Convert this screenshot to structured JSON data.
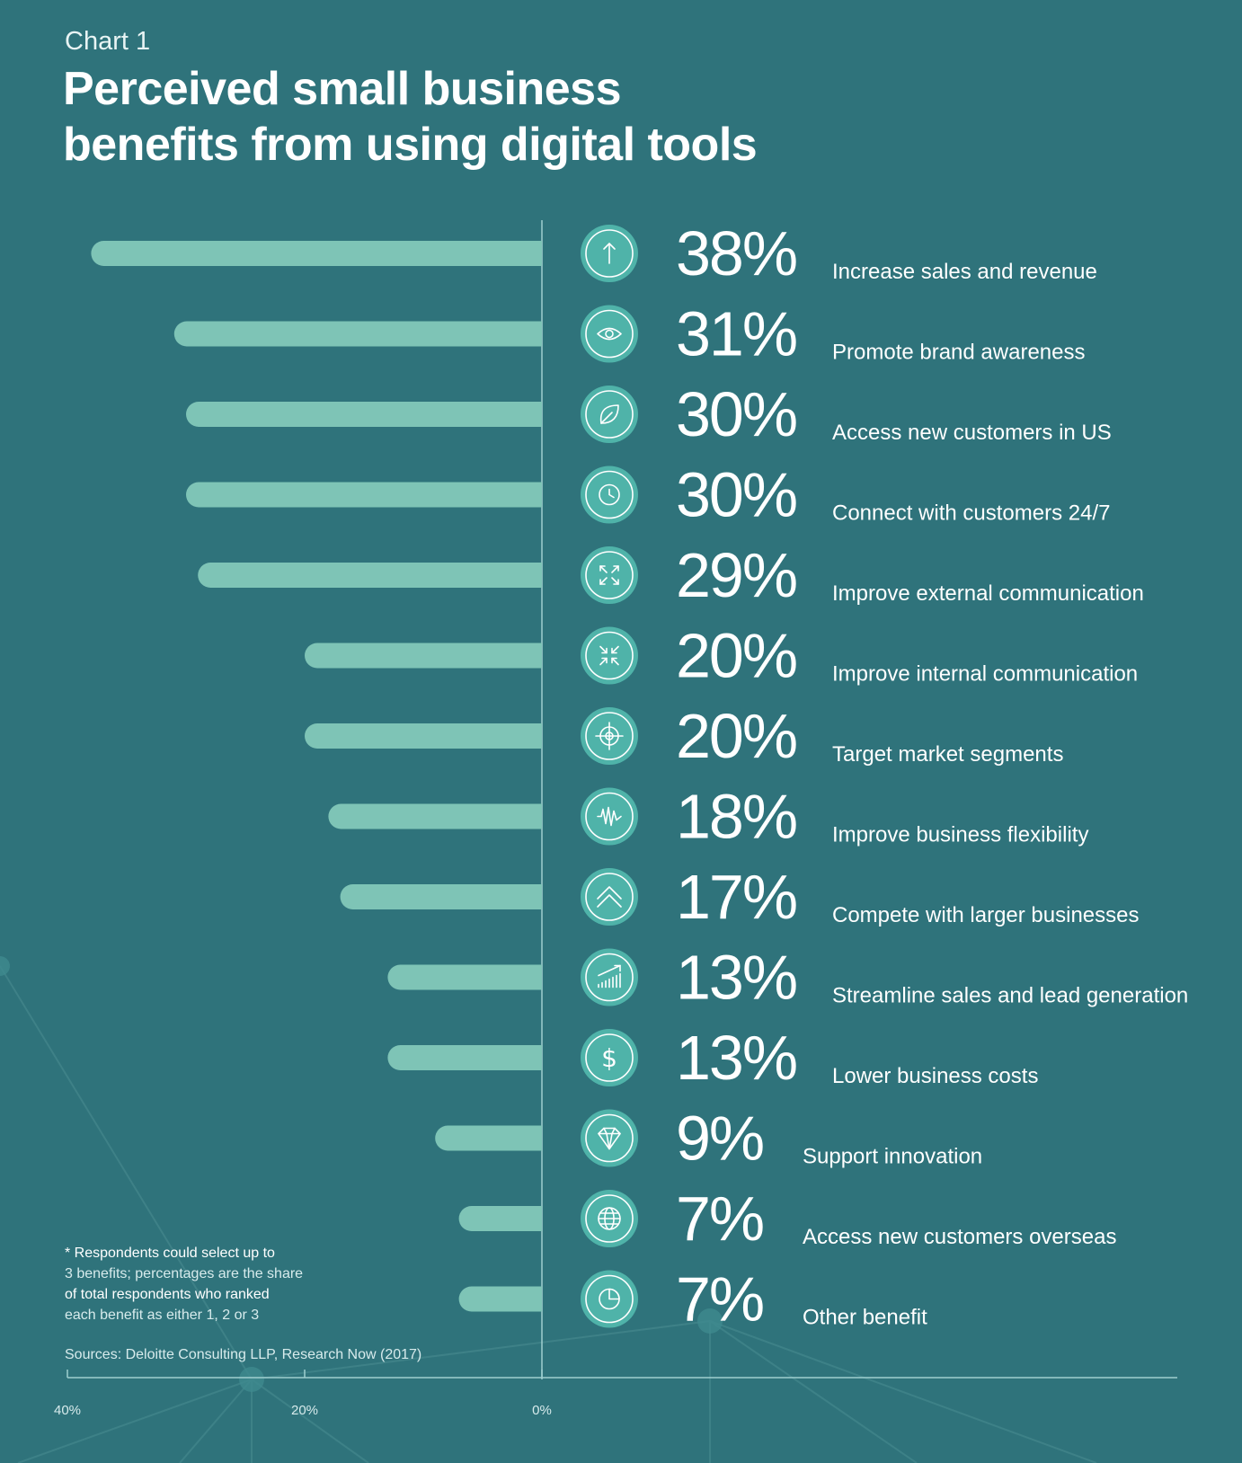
{
  "header": {
    "chart_number": "Chart 1",
    "title_line1": "Perceived small business",
    "title_line2": "benefits from using digital tools"
  },
  "footnote": {
    "line1": "* Respondents could select up to",
    "line2": "3 benefits; percentages are the share",
    "line3": "of total respondents who ranked",
    "line4": "each benefit as either 1, 2 or 3"
  },
  "sources": "Sources: Deloitte Consulting LLP, Research Now (2017)",
  "colors": {
    "background": "#2f737b",
    "bar": "#7ec4b6",
    "icon_circle": "#4fb3a9",
    "axis": "#9fcfd0"
  },
  "chart_data": {
    "type": "bar",
    "orientation": "horizontal",
    "direction": "right-to-left",
    "xlim": [
      0,
      40
    ],
    "x_ticks": [
      {
        "value": 40,
        "label": "40%"
      },
      {
        "value": 20,
        "label": "20%"
      },
      {
        "value": 0,
        "label": "0%"
      }
    ],
    "categories": [
      "Increase sales and revenue",
      "Promote brand awareness",
      "Access new customers in US",
      "Connect with customers 24/7",
      "Improve external communication",
      "Improve internal communication",
      "Target market segments",
      "Improve business flexibility",
      "Compete with larger businesses",
      "Streamline sales and lead generation",
      "Lower business costs",
      "Support innovation",
      "Access new customers overseas",
      "Other benefit"
    ],
    "values": [
      38,
      31,
      30,
      30,
      29,
      20,
      20,
      18,
      17,
      13,
      13,
      9,
      7,
      7
    ],
    "value_labels": [
      "38%",
      "31%",
      "30%",
      "30%",
      "29%",
      "20%",
      "20%",
      "18%",
      "17%",
      "13%",
      "13%",
      "9%",
      "7%",
      "7%"
    ],
    "icons": [
      "arrow-up-icon",
      "eye-icon",
      "leaf-icon",
      "clock-icon",
      "expand-arrows-icon",
      "collapse-arrows-icon",
      "target-icon",
      "wave-icon",
      "chevron-up-icon",
      "growth-chart-icon",
      "dollar-icon",
      "diamond-icon",
      "globe-icon",
      "pie-chart-icon"
    ]
  }
}
